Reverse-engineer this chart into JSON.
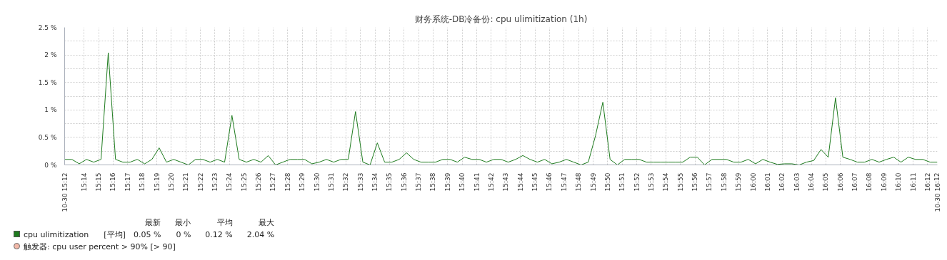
{
  "chart_data": {
    "type": "line",
    "title": "财务系统-DB冷备份: cpu ulimitization (1h)",
    "x": [
      15.2111,
      15.2194,
      15.2278,
      15.2361,
      15.2444,
      15.2528,
      15.2611,
      15.2694,
      15.2778,
      15.2861,
      15.2944,
      15.3028,
      15.3111,
      15.3194,
      15.3278,
      15.3361,
      15.3444,
      15.3528,
      15.3611,
      15.3694,
      15.3778,
      15.3861,
      15.3944,
      15.4028,
      15.4111,
      15.4194,
      15.4278,
      15.4361,
      15.4444,
      15.4528,
      15.4611,
      15.4694,
      15.4778,
      15.4861,
      15.4944,
      15.5028,
      15.5111,
      15.5194,
      15.5278,
      15.5361,
      15.5444,
      15.5528,
      15.5611,
      15.5694,
      15.5778,
      15.5861,
      15.5944,
      15.6028,
      15.6111,
      15.6194,
      15.6278,
      15.6361,
      15.6444,
      15.6528,
      15.6611,
      15.6694,
      15.6778,
      15.6861,
      15.6944,
      15.7028,
      15.7111,
      15.7194,
      15.7278,
      15.7361,
      15.7444,
      15.7528,
      15.7611,
      15.7694,
      15.7778,
      15.7861,
      15.7944,
      15.8028,
      15.8111,
      15.8194,
      15.8278,
      15.8361,
      15.8444,
      15.8528,
      15.8611,
      15.8694,
      15.8778,
      15.8861,
      15.8944,
      15.9028,
      15.9111,
      15.9194,
      15.9278,
      15.9361,
      15.9444,
      15.9528,
      15.9611,
      15.9694,
      15.9778,
      15.9861,
      15.9944,
      16.0028,
      16.0111,
      16.0194,
      16.0278,
      16.0361,
      16.0444,
      16.0528,
      16.0611,
      16.0694,
      16.0778,
      16.0861,
      16.0944,
      16.1028,
      16.1111,
      16.1194,
      16.1278,
      16.1361,
      16.1444,
      16.1528,
      16.1611,
      16.1694,
      16.1778,
      16.1861,
      16.1944,
      16.2028,
      16.2111
    ],
    "series": [
      {
        "name": "cpu ulimitization",
        "color": "#1e7b1e",
        "values": [
          0.1,
          0.1,
          0.02,
          0.1,
          0.05,
          0.1,
          2.04,
          0.1,
          0.05,
          0.05,
          0.1,
          0.02,
          0.1,
          0.31,
          0.05,
          0.1,
          0.05,
          0,
          0.1,
          0.1,
          0.05,
          0.1,
          0.05,
          0.9,
          0.1,
          0.05,
          0.1,
          0.05,
          0.17,
          0,
          0.05,
          0.1,
          0.1,
          0.1,
          0.02,
          0.05,
          0.1,
          0.05,
          0.1,
          0.1,
          0.97,
          0.05,
          0,
          0.4,
          0.05,
          0.05,
          0.1,
          0.22,
          0.1,
          0.05,
          0.05,
          0.05,
          0.1,
          0.1,
          0.05,
          0.14,
          0.1,
          0.1,
          0.05,
          0.1,
          0.1,
          0.05,
          0.1,
          0.17,
          0.1,
          0.05,
          0.1,
          0.02,
          0.05,
          0.1,
          0.05,
          0,
          0.05,
          0.53,
          1.14,
          0.1,
          0,
          0.1,
          0.1,
          0.1,
          0.05,
          0.05,
          0.05,
          0.05,
          0.05,
          0.05,
          0.14,
          0.14,
          0,
          0.1,
          0.1,
          0.1,
          0.05,
          0.05,
          0.1,
          0.02,
          0.1,
          0.05,
          0.01,
          0.02,
          0.02,
          0,
          0.05,
          0.08,
          0.28,
          0.14,
          1.22,
          0.14,
          0.1,
          0.05,
          0.05,
          0.1,
          0.05,
          0.1,
          0.14,
          0.05,
          0.14,
          0.1,
          0.1,
          0.05,
          0.05
        ]
      }
    ],
    "xlim": [
      15.2111,
      16.2111
    ],
    "xticks": [
      {
        "value": 15.2111,
        "label": "10-30 15:12"
      },
      {
        "value": 15.2333,
        "label": "15:14"
      },
      {
        "value": 15.25,
        "label": "15:15"
      },
      {
        "value": 15.2667,
        "label": "15:16"
      },
      {
        "value": 15.2833,
        "label": "15:17"
      },
      {
        "value": 15.3,
        "label": "15:18"
      },
      {
        "value": 15.3167,
        "label": "15:19"
      },
      {
        "value": 15.3333,
        "label": "15:20"
      },
      {
        "value": 15.35,
        "label": "15:21"
      },
      {
        "value": 15.3667,
        "label": "15:22"
      },
      {
        "value": 15.3833,
        "label": "15:23"
      },
      {
        "value": 15.4,
        "label": "15:24"
      },
      {
        "value": 15.4167,
        "label": "15:25"
      },
      {
        "value": 15.4333,
        "label": "15:26"
      },
      {
        "value": 15.45,
        "label": "15:27"
      },
      {
        "value": 15.4667,
        "label": "15:28"
      },
      {
        "value": 15.4833,
        "label": "15:29"
      },
      {
        "value": 15.5,
        "label": "15:30"
      },
      {
        "value": 15.5167,
        "label": "15:31"
      },
      {
        "value": 15.5333,
        "label": "15:32"
      },
      {
        "value": 15.55,
        "label": "15:33"
      },
      {
        "value": 15.5667,
        "label": "15:34"
      },
      {
        "value": 15.5833,
        "label": "15:35"
      },
      {
        "value": 15.6,
        "label": "15:36"
      },
      {
        "value": 15.6167,
        "label": "15:37"
      },
      {
        "value": 15.6333,
        "label": "15:38"
      },
      {
        "value": 15.65,
        "label": "15:39"
      },
      {
        "value": 15.6667,
        "label": "15:40"
      },
      {
        "value": 15.6833,
        "label": "15:41"
      },
      {
        "value": 15.7,
        "label": "15:42"
      },
      {
        "value": 15.7167,
        "label": "15:43"
      },
      {
        "value": 15.7333,
        "label": "15:44"
      },
      {
        "value": 15.75,
        "label": "15:45"
      },
      {
        "value": 15.7667,
        "label": "15:46"
      },
      {
        "value": 15.7833,
        "label": "15:47"
      },
      {
        "value": 15.8,
        "label": "15:48"
      },
      {
        "value": 15.8167,
        "label": "15:49"
      },
      {
        "value": 15.8333,
        "label": "15:50"
      },
      {
        "value": 15.85,
        "label": "15:51"
      },
      {
        "value": 15.8667,
        "label": "15:52"
      },
      {
        "value": 15.8833,
        "label": "15:53"
      },
      {
        "value": 15.9,
        "label": "15:54"
      },
      {
        "value": 15.9167,
        "label": "15:55"
      },
      {
        "value": 15.9333,
        "label": "15:56"
      },
      {
        "value": 15.95,
        "label": "15:57"
      },
      {
        "value": 15.9667,
        "label": "15:58"
      },
      {
        "value": 15.9833,
        "label": "15:59"
      },
      {
        "value": 16,
        "label": "16:00"
      },
      {
        "value": 16.0167,
        "label": "16:01"
      },
      {
        "value": 16.0333,
        "label": "16:02"
      },
      {
        "value": 16.05,
        "label": "16:03"
      },
      {
        "value": 16.0667,
        "label": "16:04"
      },
      {
        "value": 16.0833,
        "label": "16:05"
      },
      {
        "value": 16.1,
        "label": "16:06"
      },
      {
        "value": 16.1167,
        "label": "16:07"
      },
      {
        "value": 16.1333,
        "label": "16:08"
      },
      {
        "value": 16.15,
        "label": "16:09"
      },
      {
        "value": 16.1667,
        "label": "16:10"
      },
      {
        "value": 16.1833,
        "label": "16:11"
      },
      {
        "value": 16.2,
        "label": "16:12"
      },
      {
        "value": 16.2111,
        "label": "10-30 16:12"
      }
    ],
    "ylim": [
      0,
      2.5
    ],
    "yticks": [
      {
        "value": 0,
        "label": "0 %"
      },
      {
        "value": 0.25,
        "label": null
      },
      {
        "value": 0.5,
        "label": "0.5 %"
      },
      {
        "value": 0.75,
        "label": null
      },
      {
        "value": 1,
        "label": "1 %"
      },
      {
        "value": 1.25,
        "label": null
      },
      {
        "value": 1.5,
        "label": "1.5 %"
      },
      {
        "value": 1.75,
        "label": null
      },
      {
        "value": 2,
        "label": "2 %"
      },
      {
        "value": 2.25,
        "label": null
      },
      {
        "value": 2.5,
        "label": "2.5 %"
      }
    ],
    "grid": true,
    "legend": "bottom",
    "annotations": [
      "最新",
      "最小",
      "平均",
      "最大",
      "[平均]",
      "0.05 %",
      "0 %",
      "0.12 %",
      "2.04 %",
      "触发器: cpu user percent > 90%   [> 90]"
    ]
  }
}
